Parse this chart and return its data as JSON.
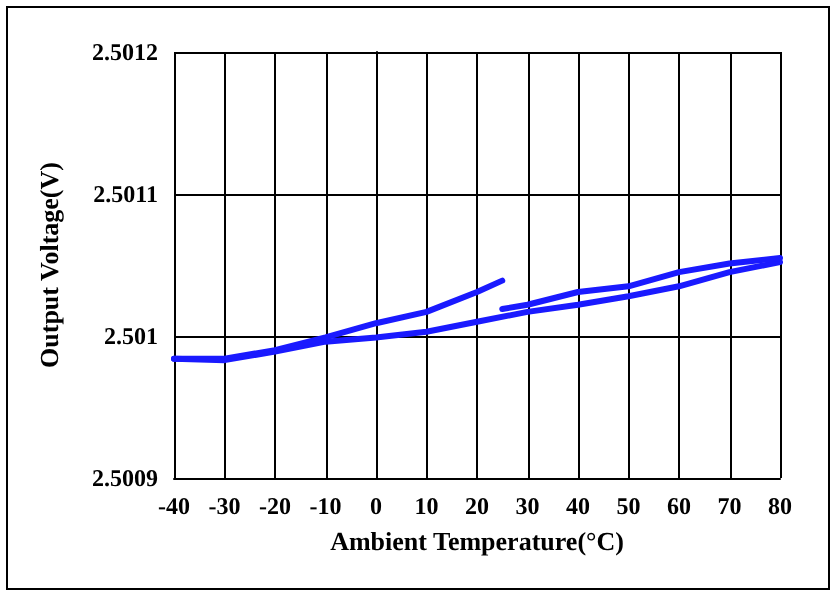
{
  "chart_data": {
    "type": "line",
    "xlabel": "Ambient Temperature(°C)",
    "ylabel": "Output Voltage(V)",
    "xlim": [
      -40,
      80
    ],
    "xticks": [
      -40,
      -30,
      -20,
      -10,
      0,
      10,
      20,
      30,
      40,
      50,
      60,
      70,
      80
    ],
    "ylim": [
      2.5009,
      2.5012
    ],
    "yticks": [
      2.5009,
      2.501,
      2.5011,
      2.5012
    ],
    "grid": true,
    "marker": "none",
    "line_style": "solid",
    "series": [
      {
        "color": "#1a1aff",
        "x": [
          -40,
          -30,
          -20,
          -10,
          0,
          10,
          20,
          30,
          40,
          50,
          60,
          70,
          80
        ],
        "values": [
          2.500984,
          2.500983,
          2.500989,
          2.500996,
          2.500999,
          2.501003,
          2.50101,
          2.501017,
          2.501022,
          2.501028,
          2.501035,
          2.501045,
          2.501052
        ]
      },
      {
        "color": "#1a1aff",
        "x": [
          -40,
          -30,
          -20,
          -10,
          0,
          10,
          20,
          25
        ],
        "values": [
          2.500984,
          2.500984,
          2.50099,
          2.500999,
          2.501009,
          2.501017,
          2.501031,
          2.501039
        ]
      },
      {
        "color": "#1a1aff",
        "x": [
          25,
          30,
          40,
          50,
          60,
          70,
          80
        ],
        "values": [
          2.501019,
          2.501022,
          2.501031,
          2.501035,
          2.501045,
          2.501051,
          2.501055
        ]
      }
    ]
  }
}
